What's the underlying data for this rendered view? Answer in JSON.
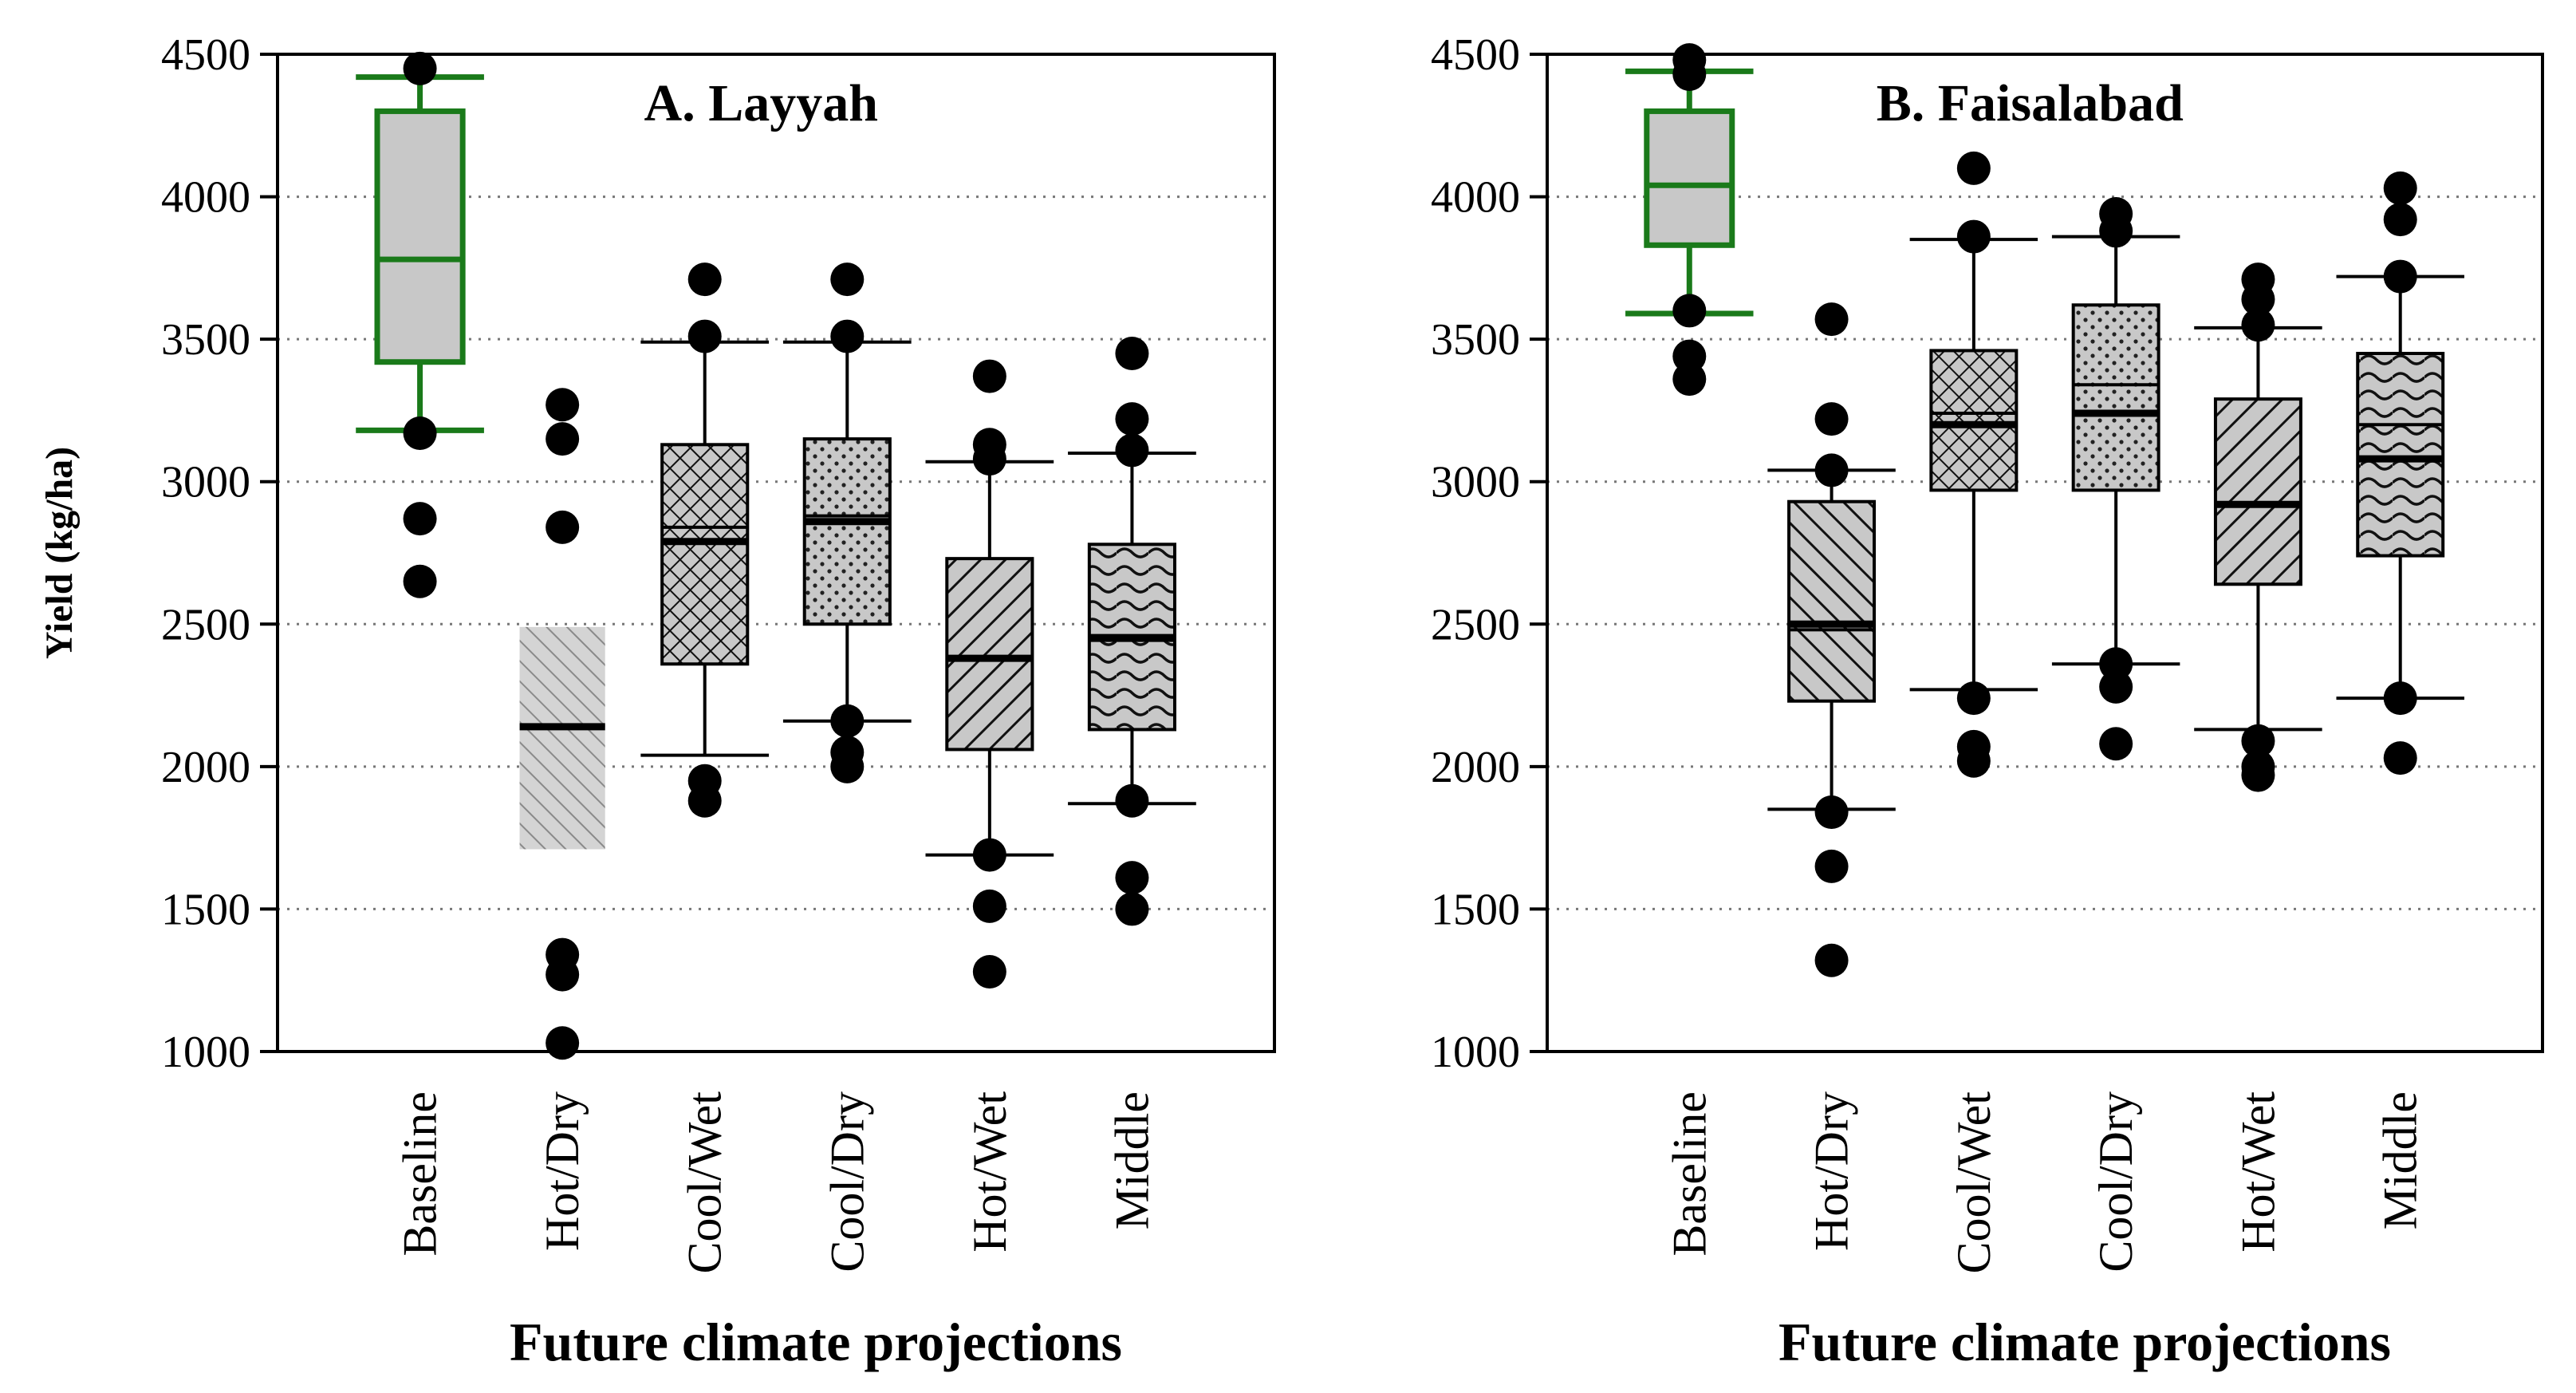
{
  "chart_data": [
    {
      "type": "box",
      "title": "A. Layyah",
      "xlabel": "Future climate projections",
      "ylabel": "Yield (kg/ha)",
      "ylim": [
        1000,
        4500
      ],
      "yticks": [
        1000,
        1500,
        2000,
        2500,
        3000,
        3500,
        4000,
        4500
      ],
      "grid": "dotted horizontal",
      "categories": [
        {
          "name": "Baseline",
          "whisker_low": 3180,
          "q1": 3420,
          "median": 3780,
          "q3": 4300,
          "whisker_high": 4420,
          "outliers": [
            4450,
            3170,
            2870,
            2650
          ],
          "pattern": "plain",
          "color": "#1a7a1a"
        },
        {
          "name": "Hot/Dry",
          "whisker_low": null,
          "q1": 1710,
          "median": 2140,
          "q3": 2490,
          "whisker_high": null,
          "outliers": [
            3270,
            3150,
            2840,
            1340,
            1270,
            1030
          ],
          "pattern": "light-diag",
          "color": "#999999"
        },
        {
          "name": "Cool/Wet",
          "whisker_low": 2040,
          "q1": 2360,
          "median": 2790,
          "mean": 2840,
          "q3": 3130,
          "whisker_high": 3490,
          "outliers": [
            3710,
            3510,
            1950,
            1880
          ],
          "pattern": "crosshatch",
          "color": "#000000"
        },
        {
          "name": "Cool/Dry",
          "whisker_low": 2160,
          "q1": 2500,
          "median": 2860,
          "mean": 2880,
          "q3": 3150,
          "whisker_high": 3490,
          "outliers": [
            3710,
            3510,
            2160,
            2050,
            2000
          ],
          "pattern": "dots",
          "color": "#000000"
        },
        {
          "name": "Hot/Wet",
          "whisker_low": 1690,
          "q1": 2060,
          "median": 2380,
          "q3": 2730,
          "whisker_high": 3070,
          "outliers": [
            3370,
            3130,
            3080,
            1690,
            1510,
            1280
          ],
          "pattern": "backdiag",
          "color": "#000000"
        },
        {
          "name": "Middle",
          "whisker_low": 1870,
          "q1": 2130,
          "median": 2450,
          "mean": 2460,
          "q3": 2780,
          "whisker_high": 3100,
          "outliers": [
            3450,
            3220,
            3110,
            1880,
            1610,
            1500
          ],
          "pattern": "waves",
          "color": "#000000"
        }
      ]
    },
    {
      "type": "box",
      "title": "B. Faisalabad",
      "xlabel": "Future climate projections",
      "ylabel": "",
      "ylim": [
        1000,
        4500
      ],
      "yticks": [
        1000,
        1500,
        2000,
        2500,
        3000,
        3500,
        4000,
        4500
      ],
      "grid": "dotted horizontal",
      "categories": [
        {
          "name": "Baseline",
          "whisker_low": 3590,
          "q1": 3830,
          "median": 4040,
          "q3": 4300,
          "whisker_high": 4440,
          "outliers": [
            4480,
            4430,
            3600,
            3440,
            3360
          ],
          "pattern": "plain",
          "color": "#1a7a1a"
        },
        {
          "name": "Hot/Dry",
          "whisker_low": 1850,
          "q1": 2230,
          "median": 2500,
          "mean": 2480,
          "q3": 2930,
          "whisker_high": 3040,
          "outliers": [
            3570,
            3220,
            3040,
            1840,
            1650,
            1320
          ],
          "pattern": "diag",
          "color": "#000000"
        },
        {
          "name": "Cool/Wet",
          "whisker_low": 2270,
          "q1": 2970,
          "median": 3200,
          "mean": 3240,
          "q3": 3460,
          "whisker_high": 3850,
          "outliers": [
            4100,
            3860,
            2240,
            2070,
            2020
          ],
          "pattern": "crosshatch",
          "color": "#000000"
        },
        {
          "name": "Cool/Dry",
          "whisker_low": 2360,
          "q1": 2970,
          "median": 3240,
          "mean": 3340,
          "q3": 3620,
          "whisker_high": 3860,
          "outliers": [
            3940,
            3880,
            2360,
            2280,
            2080
          ],
          "pattern": "dots",
          "color": "#000000"
        },
        {
          "name": "Hot/Wet",
          "whisker_low": 2130,
          "q1": 2640,
          "median": 2920,
          "q3": 3290,
          "whisker_high": 3540,
          "outliers": [
            3710,
            3640,
            3550,
            2090,
            2000,
            1970
          ],
          "pattern": "backdiag",
          "color": "#000000"
        },
        {
          "name": "Middle",
          "whisker_low": 2240,
          "q1": 2740,
          "median": 3080,
          "mean": 3200,
          "q3": 3450,
          "whisker_high": 3720,
          "outliers": [
            4030,
            3920,
            3720,
            2240,
            2030
          ],
          "pattern": "waves",
          "color": "#000000"
        }
      ]
    }
  ]
}
